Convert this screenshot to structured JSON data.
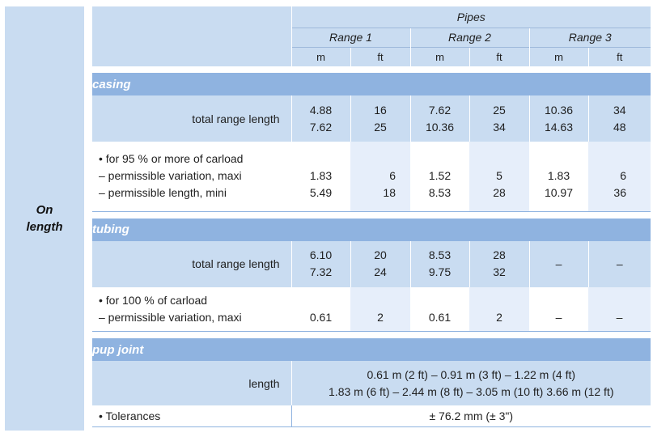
{
  "side_label": [
    "On",
    "length"
  ],
  "header": {
    "group": "Pipes",
    "ranges": [
      "Range 1",
      "Range 2",
      "Range 3"
    ],
    "units": [
      "m",
      "ft",
      "m",
      "ft",
      "m",
      "ft"
    ]
  },
  "casing": {
    "title": "casing",
    "total_label": "total range length",
    "total": [
      [
        "4.88",
        "7.62"
      ],
      [
        "16",
        "25"
      ],
      [
        "7.62",
        "10.36"
      ],
      [
        "25",
        "34"
      ],
      [
        "10.36",
        "14.63"
      ],
      [
        "34",
        "48"
      ]
    ],
    "note_lines": [
      "• for 95 % or more of carload",
      "– permissible variation, maxi",
      "– permissible length, mini"
    ],
    "note": [
      [
        "1.83",
        "5.49"
      ],
      [
        "6",
        "18"
      ],
      [
        "1.52",
        "8.53"
      ],
      [
        "5",
        "28"
      ],
      [
        "1.83",
        "10.97"
      ],
      [
        "6",
        "36"
      ]
    ]
  },
  "tubing": {
    "title": "tubing",
    "total_label": "total range length",
    "total": [
      [
        "6.10",
        "7.32"
      ],
      [
        "20",
        "24"
      ],
      [
        "8.53",
        "9.75"
      ],
      [
        "28",
        "32"
      ],
      [
        "–"
      ],
      [
        "–"
      ]
    ],
    "note_lines": [
      "• for 100 % of carload",
      "– permissible variation, maxi"
    ],
    "note": [
      "0.61",
      "2",
      "0.61",
      "2",
      "–",
      "–"
    ]
  },
  "pup_joint": {
    "title": "pup joint",
    "length_label": "length",
    "lines": [
      "0.61 m (2 ft) – 0.91 m (3 ft) – 1.22 m (4 ft)",
      "1.83 m (6 ft) – 2.44 m (8 ft) – 3.05 m (10 ft) 3.66 m (12 ft)"
    ]
  },
  "tolerances": {
    "label": "• Tolerances",
    "value": "± 76.2 mm (± 3\")"
  }
}
